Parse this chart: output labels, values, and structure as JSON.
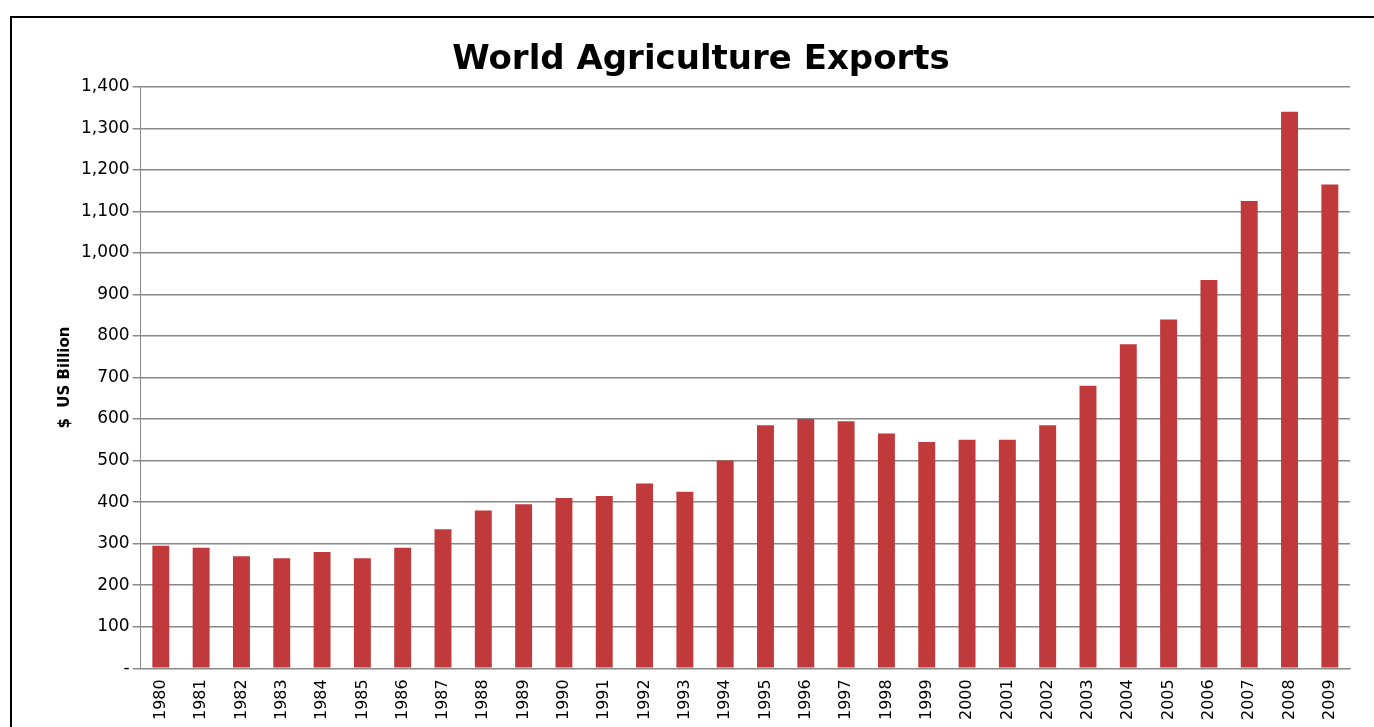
{
  "chart_data": {
    "type": "bar",
    "title": "World Agriculture Exports",
    "ylabel": "$  US Billion",
    "categories": [
      "1980",
      "1981",
      "1982",
      "1983",
      "1984",
      "1985",
      "1986",
      "1987",
      "1988",
      "1989",
      "1990",
      "1991",
      "1992",
      "1993",
      "1994",
      "1995",
      "1996",
      "1997",
      "1998",
      "1999",
      "2000",
      "2001",
      "2002",
      "2003",
      "2004",
      "2005",
      "2006",
      "2007",
      "2008",
      "2009"
    ],
    "values": [
      295,
      290,
      270,
      265,
      280,
      265,
      290,
      335,
      380,
      395,
      410,
      415,
      445,
      425,
      500,
      585,
      600,
      595,
      565,
      545,
      550,
      550,
      585,
      680,
      780,
      840,
      935,
      1125,
      1340,
      1165
    ],
    "color": "#c0393b",
    "ylim": [
      0,
      1400
    ],
    "yticks": [
      {
        "value": 0,
        "label": "-"
      },
      100,
      200,
      300,
      400,
      500,
      600,
      700,
      800,
      900,
      {
        "value": 1000,
        "label": "1,000"
      },
      {
        "value": 1100,
        "label": "1,100"
      },
      {
        "value": 1200,
        "label": "1,200"
      },
      {
        "value": 1300,
        "label": "1,300"
      },
      {
        "value": 1400,
        "label": "1,400"
      }
    ],
    "grid": "y",
    "legend": false
  }
}
